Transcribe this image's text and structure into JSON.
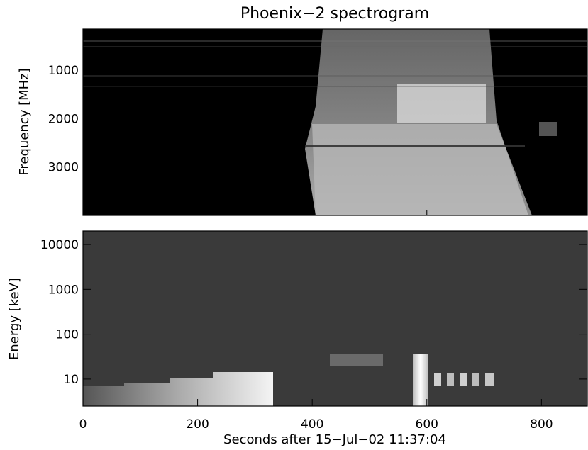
{
  "title": "Phoenix−2 spectrogram",
  "chart_data": [
    {
      "type": "heatmap",
      "panel": "top",
      "title": "Phoenix−2 spectrogram",
      "ylabel": "Frequency [MHz]",
      "xlabel": "",
      "xlim": [
        0,
        880
      ],
      "ylim": [
        4000,
        150
      ],
      "y_ticks": [
        1000,
        2000,
        3000
      ],
      "x_ticks": [
        0,
        200,
        400,
        600,
        800
      ],
      "colormap": "grayscale",
      "features": [
        {
          "label": "main burst",
          "t_start": 420,
          "t_end": 700,
          "f_start": 200,
          "f_end": 4000
        },
        {
          "label": "bright band",
          "t_start": 560,
          "t_end": 690,
          "f_start": 1300,
          "f_end": 2000
        }
      ]
    },
    {
      "type": "heatmap",
      "panel": "bottom",
      "ylabel": "Energy [keV]",
      "xlabel": "Seconds after 15−Jul−02 11:37:04",
      "xlim": [
        0,
        880
      ],
      "ylim": [
        2.5,
        20000
      ],
      "yscale": "log",
      "y_ticks": [
        10,
        100,
        1000,
        10000
      ],
      "y_tick_labels": [
        "10",
        "100",
        "1000",
        "10000"
      ],
      "x_ticks": [
        0,
        200,
        400,
        600,
        800
      ],
      "x_tick_labels": [
        "0",
        "200",
        "400",
        "600",
        "800"
      ],
      "colormap": "grayscale",
      "features": [
        {
          "label": "low-energy ramp",
          "t_start": 0,
          "t_end": 335,
          "e_min": 3,
          "e_max": 15
        },
        {
          "label": "spike",
          "t_start": 575,
          "t_end": 600,
          "e_min": 3,
          "e_max": 30
        },
        {
          "label": "modulated band",
          "t_start": 610,
          "t_end": 720,
          "e_min": 7,
          "e_max": 13
        },
        {
          "label": "faint band",
          "t_start": 440,
          "t_end": 540,
          "e_min": 20,
          "e_max": 30
        }
      ]
    }
  ],
  "colors": {
    "top_background": "#000000",
    "bottom_background": "#3a3a3a",
    "axis": "#000000",
    "text": "#000000"
  }
}
